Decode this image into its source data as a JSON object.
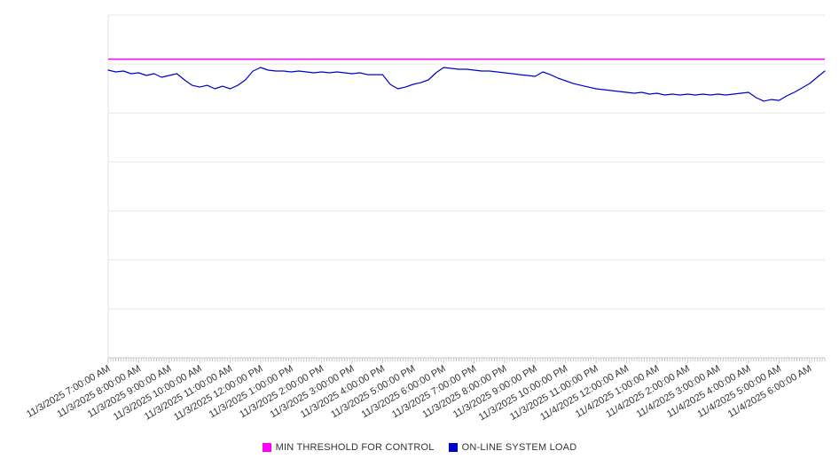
{
  "page": {
    "background": "#ffffff"
  },
  "legend": {
    "items": [
      {
        "label": "MIN THRESHOLD FOR CONTROL",
        "color": "#ff00ff"
      },
      {
        "label": "ON-LINE SYSTEM LOAD",
        "color": "#0000cc"
      }
    ]
  },
  "chart_style": {
    "gridline_color": "#e7e7e7",
    "axis_color": "#c8c8c8",
    "left_axis_color": "#e0e0e0",
    "tick_color": "#c8c8c8",
    "label_color": "#333333",
    "label_font_size": 11,
    "label_rotation_deg": -30
  },
  "chart_data": {
    "type": "line",
    "title": "",
    "xlabel": "",
    "ylabel": "",
    "ylim": [
      0,
      3500
    ],
    "gridline_step": 500,
    "grid": "horizontal",
    "legend_position": "bottom",
    "x_hours_span": 23.5,
    "x_tick_labels": [
      "11/3/2025 7:00:00 AM",
      "11/3/2025 8:00:00 AM",
      "11/3/2025 9:00:00 AM",
      "11/3/2025 10:00:00 AM",
      "11/3/2025 11:00:00 AM",
      "11/3/2025 12:00:00 PM",
      "11/3/2025 1:00:00 PM",
      "11/3/2025 2:00:00 PM",
      "11/3/2025 3:00:00 PM",
      "11/3/2025 4:00:00 PM",
      "11/3/2025 5:00:00 PM",
      "11/3/2025 6:00:00 PM",
      "11/3/2025 7:00:00 PM",
      "11/3/2025 8:00:00 PM",
      "11/3/2025 9:00:00 PM",
      "11/3/2025 10:00:00 PM",
      "11/3/2025 11:00:00 PM",
      "11/4/2025 12:00:00 AM",
      "11/4/2025 1:00:00 AM",
      "11/4/2025 2:00:00 AM",
      "11/4/2025 3:00:00 AM",
      "11/4/2025 4:00:00 AM",
      "11/4/2025 5:00:00 AM",
      "11/4/2025 6:00:00 AM"
    ],
    "series": [
      {
        "name": "MIN THRESHOLD FOR CONTROL",
        "type": "constant",
        "color": "#ff00ff",
        "value": 3050
      },
      {
        "name": "ON-LINE SYSTEM LOAD",
        "type": "line",
        "color": "#0000cc",
        "x_start_hour": 0,
        "x_step_hours": 0.25,
        "values": [
          2938,
          2920,
          2929,
          2902,
          2911,
          2883,
          2902,
          2865,
          2883,
          2902,
          2838,
          2783,
          2765,
          2783,
          2747,
          2774,
          2747,
          2783,
          2838,
          2929,
          2965,
          2938,
          2929,
          2929,
          2920,
          2929,
          2920,
          2911,
          2920,
          2911,
          2920,
          2911,
          2902,
          2911,
          2892,
          2892,
          2892,
          2793,
          2747,
          2765,
          2793,
          2810,
          2838,
          2911,
          2965,
          2956,
          2947,
          2947,
          2938,
          2929,
          2929,
          2920,
          2911,
          2902,
          2892,
          2883,
          2874,
          2920,
          2892,
          2856,
          2829,
          2801,
          2783,
          2765,
          2747,
          2738,
          2729,
          2720,
          2711,
          2702,
          2711,
          2693,
          2702,
          2684,
          2693,
          2684,
          2693,
          2684,
          2693,
          2684,
          2693,
          2684,
          2693,
          2702,
          2711,
          2657,
          2621,
          2638,
          2629,
          2675,
          2711,
          2756,
          2801,
          2865,
          2929
        ]
      }
    ]
  }
}
